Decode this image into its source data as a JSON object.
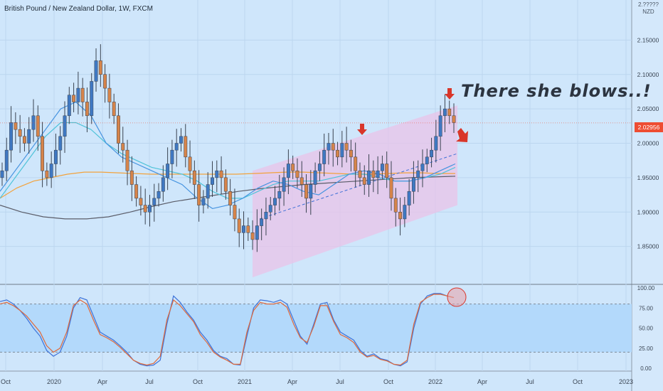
{
  "header": {
    "title": "British Pound / New Zealand Dollar, 1W, FXCM"
  },
  "annotation": {
    "text": "There she blows..!"
  },
  "price_axis": {
    "unit_top": "2.?????",
    "unit": "NZD",
    "current_price": "2.02956"
  },
  "colors": {
    "background": "#cfe6fb",
    "up_candle": "#3f78c2",
    "down_candle": "#d6844a",
    "wick": "#3a4350",
    "channel_fill": "#e9c3e8",
    "ma_fast": "#4593e0",
    "ma_mid": "#4fc3d9",
    "ma_slow": "#f2a23c",
    "ma_long": "#5a5c68",
    "stoch_k": "#3d72d8",
    "stoch_d": "#e0693a",
    "stoch_band": "#b3d9fb",
    "arrow": "#d9362a",
    "price_tag": "#ee4d32"
  },
  "chart_data": [
    {
      "type": "candlestick",
      "title": "British Pound / New Zealand Dollar, 1W, FXCM",
      "ylim": [
        1.8,
        2.2
      ],
      "yticks": [
        "2.15000",
        "2.10000",
        "2.05000",
        "2.00000",
        "1.95000",
        "1.90000",
        "1.85000"
      ],
      "ytick_values": [
        2.15,
        2.1,
        2.05,
        2.0,
        1.95,
        1.9,
        1.85
      ],
      "x_tick_labels": [
        "Oct",
        "2020",
        "Apr",
        "Jul",
        "Oct",
        "2021",
        "Apr",
        "Jul",
        "Oct",
        "2022",
        "Apr",
        "Jul",
        "Oct",
        "2023"
      ],
      "bar_interval": "1W",
      "current_price": 2.02956,
      "candle_closes": [
        1.96,
        1.99,
        2.03,
        2.02,
        2.01,
        2.0,
        2.02,
        2.04,
        2.01,
        1.96,
        1.95,
        1.97,
        1.99,
        2.01,
        2.04,
        2.07,
        2.06,
        2.08,
        2.06,
        2.04,
        2.09,
        2.12,
        2.1,
        2.08,
        2.06,
        2.04,
        2.0,
        1.99,
        1.96,
        1.94,
        1.92,
        1.91,
        1.9,
        1.91,
        1.92,
        1.93,
        1.95,
        1.97,
        1.99,
        2.0,
        2.01,
        1.98,
        1.96,
        1.94,
        1.91,
        1.92,
        1.94,
        1.95,
        1.96,
        1.95,
        1.93,
        1.91,
        1.89,
        1.87,
        1.88,
        1.87,
        1.86,
        1.88,
        1.89,
        1.9,
        1.91,
        1.92,
        1.93,
        1.95,
        1.97,
        1.96,
        1.95,
        1.94,
        1.92,
        1.94,
        1.96,
        1.97,
        1.99,
        2.0,
        1.99,
        1.98,
        2.0,
        1.99,
        1.98,
        1.96,
        1.95,
        1.94,
        1.96,
        1.95,
        1.96,
        1.97,
        1.95,
        1.92,
        1.9,
        1.89,
        1.91,
        1.93,
        1.95,
        1.96,
        1.97,
        1.98,
        1.99,
        2.01,
        2.04,
        2.05,
        2.04,
        2.03
      ],
      "moving_averages": [
        {
          "name": "MA fast",
          "color": "#4593e0",
          "values": [
            1.93,
            1.96,
            1.99,
            2.02,
            2.05,
            2.06,
            2.04,
            2.0,
            1.98,
            1.97,
            1.96,
            1.95,
            1.94,
            1.92,
            1.905,
            1.91,
            1.92,
            1.935,
            1.945,
            1.94,
            1.93,
            1.925,
            1.94,
            1.955,
            1.96,
            1.955,
            1.945,
            1.945,
            1.95,
            1.96,
            1.97
          ]
        },
        {
          "name": "MA mid",
          "color": "#4fc3d9",
          "values": [
            1.92,
            1.95,
            1.98,
            2.01,
            2.03,
            2.03,
            2.02,
            2.0,
            1.985,
            1.975,
            1.965,
            1.96,
            1.955,
            1.945,
            1.93,
            1.92,
            1.92,
            1.93,
            1.94,
            1.945,
            1.945,
            1.945,
            1.95,
            1.955,
            1.955,
            1.95,
            1.945,
            1.945,
            1.95,
            1.955,
            1.965
          ]
        },
        {
          "name": "MA slow",
          "color": "#f2a23c",
          "values": [
            1.92,
            1.935,
            1.945,
            1.95,
            1.955,
            1.958,
            1.958,
            1.957,
            1.956,
            1.955,
            1.955,
            1.955,
            1.955,
            1.955,
            1.955,
            1.956,
            1.957,
            1.958,
            1.958,
            1.957,
            1.956,
            1.955,
            1.955,
            1.956,
            1.957,
            1.957,
            1.956,
            1.956
          ]
        },
        {
          "name": "MA long",
          "color": "#5a5c68",
          "values": [
            1.91,
            1.9,
            1.893,
            1.89,
            1.89,
            1.893,
            1.9,
            1.908,
            1.915,
            1.92,
            1.925,
            1.93,
            1.934,
            1.937,
            1.94,
            1.942,
            1.944,
            1.946,
            1.948,
            1.95,
            1.951,
            1.952
          ]
        }
      ],
      "channel": {
        "lower_start": 1.805,
        "lower_end": 1.91,
        "upper_start": 1.96,
        "upper_end": 2.055
      },
      "trendline_dashed": {
        "start": 1.89,
        "end": 1.985
      }
    },
    {
      "type": "line",
      "title": "",
      "ylim": [
        0,
        100
      ],
      "yticks": [
        "100.00",
        "75.00",
        "50.00",
        "25.00",
        "0.00"
      ],
      "ytick_values": [
        100,
        75,
        50,
        25,
        0
      ],
      "reference_lines": [
        80,
        20
      ],
      "series": [
        {
          "values": [
            83,
            85,
            80,
            72,
            62,
            50,
            40,
            22,
            15,
            20,
            40,
            75,
            88,
            85,
            65,
            45,
            40,
            35,
            28,
            20,
            10,
            5,
            3,
            4,
            10,
            55,
            90,
            82,
            70,
            60,
            45,
            35,
            22,
            15,
            12,
            5,
            4,
            40,
            75,
            85,
            84,
            82,
            85,
            80,
            60,
            40,
            30,
            55,
            80,
            82,
            60,
            45,
            40,
            35,
            22,
            15,
            18,
            12,
            10,
            5,
            3,
            8,
            50,
            80,
            90,
            93,
            93,
            90,
            88
          ]
        },
        {
          "values": [
            80,
            82,
            78,
            72,
            65,
            55,
            45,
            28,
            20,
            25,
            45,
            78,
            85,
            80,
            60,
            42,
            38,
            33,
            26,
            18,
            10,
            6,
            4,
            6,
            15,
            60,
            85,
            78,
            68,
            58,
            42,
            32,
            20,
            14,
            10,
            5,
            5,
            45,
            72,
            82,
            80,
            80,
            82,
            76,
            55,
            38,
            32,
            52,
            78,
            78,
            58,
            42,
            38,
            32,
            20,
            14,
            16,
            11,
            9,
            5,
            4,
            10,
            55,
            82,
            88,
            92,
            92,
            90,
            88
          ]
        }
      ]
    }
  ]
}
